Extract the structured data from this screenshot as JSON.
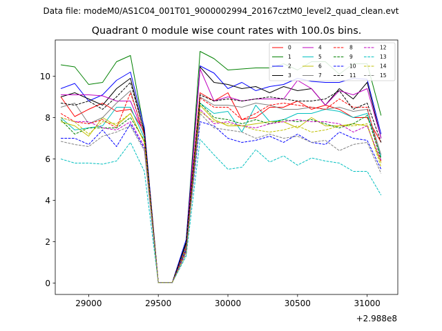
{
  "chart_data": {
    "type": "line",
    "suptitle": "Data file: modeM0/AS1C04_001T01_9000002994_20167cztM0_level2_quad_clean.evt",
    "title": "Quadrant 0 module wise count rates with 100.0s bins.",
    "xlabel": "",
    "ylabel": "",
    "x_offset_label": "+2.988e8",
    "xlim": [
      28760,
      31220
    ],
    "ylim": [
      -0.55,
      11.75
    ],
    "xticks": [
      29000,
      29500,
      30000,
      30500,
      31000
    ],
    "yticks": [
      0,
      2,
      4,
      6,
      8,
      10
    ],
    "x": [
      28800,
      28900,
      29000,
      29100,
      29200,
      29300,
      29400,
      29500,
      29600,
      29700,
      29800,
      29900,
      30000,
      30100,
      30200,
      30300,
      30400,
      30500,
      30600,
      30700,
      30800,
      30900,
      31000,
      31100
    ],
    "series": [
      {
        "name": "0",
        "color": "#ff0000",
        "dash": "solid",
        "values": [
          9.0,
          8.05,
          8.4,
          8.7,
          8.3,
          8.4,
          7.3,
          0.02,
          0.02,
          1.9,
          9.2,
          8.8,
          9.2,
          7.9,
          8.0,
          8.5,
          8.5,
          8.8,
          8.4,
          8.6,
          8.4,
          8.0,
          8.0,
          6.8
        ]
      },
      {
        "name": "1",
        "color": "#008000",
        "dash": "solid",
        "values": [
          10.55,
          10.45,
          9.6,
          9.7,
          10.7,
          11.0,
          7.4,
          0.02,
          0.02,
          2.0,
          11.2,
          10.85,
          10.3,
          10.35,
          10.4,
          10.4,
          10.6,
          10.3,
          10.7,
          10.7,
          10.1,
          10.6,
          10.6,
          8.1
        ]
      },
      {
        "name": "2",
        "color": "#0000ff",
        "dash": "solid",
        "values": [
          9.4,
          9.65,
          8.8,
          9.1,
          9.8,
          10.2,
          7.5,
          0.02,
          0.02,
          2.1,
          10.5,
          10.15,
          9.4,
          9.7,
          9.3,
          9.5,
          9.6,
          9.9,
          9.75,
          9.7,
          9.7,
          9.9,
          9.85,
          7.2
        ]
      },
      {
        "name": "3",
        "color": "#000000",
        "dash": "solid",
        "values": [
          9.0,
          9.2,
          8.9,
          8.6,
          9.4,
          9.9,
          7.3,
          0.02,
          0.02,
          1.95,
          10.45,
          9.7,
          9.6,
          9.4,
          9.5,
          9.2,
          9.5,
          9.3,
          9.4,
          8.6,
          9.4,
          8.9,
          9.7,
          7.0
        ]
      },
      {
        "name": "4",
        "color": "#bf00bf",
        "dash": "solid",
        "values": [
          9.1,
          9.1,
          9.1,
          9.05,
          8.8,
          8.8,
          7.2,
          0.02,
          0.02,
          1.8,
          10.35,
          8.8,
          9.0,
          8.8,
          8.9,
          8.9,
          8.9,
          9.8,
          9.4,
          8.6,
          9.3,
          9.1,
          9.4,
          7.0
        ]
      },
      {
        "name": "5",
        "color": "#00bfbf",
        "dash": "solid",
        "values": [
          8.0,
          7.4,
          7.5,
          7.6,
          8.5,
          8.5,
          7.0,
          0.02,
          0.02,
          1.7,
          8.7,
          8.2,
          8.3,
          7.3,
          8.6,
          7.8,
          7.9,
          8.2,
          8.2,
          8.4,
          8.3,
          8.0,
          8.2,
          6.1
        ]
      },
      {
        "name": "6",
        "color": "#bfbf00",
        "dash": "solid",
        "values": [
          7.8,
          7.6,
          7.1,
          8.0,
          7.6,
          8.2,
          6.8,
          0.02,
          0.02,
          1.6,
          8.6,
          7.9,
          7.6,
          7.6,
          7.7,
          7.8,
          7.8,
          7.5,
          8.0,
          7.6,
          7.6,
          7.7,
          7.6,
          5.8
        ]
      },
      {
        "name": "7",
        "color": "#808080",
        "dash": "solid",
        "values": [
          8.5,
          8.7,
          7.7,
          8.0,
          8.7,
          9.3,
          7.1,
          0.02,
          0.02,
          1.8,
          9.0,
          8.6,
          8.6,
          8.5,
          8.7,
          8.6,
          8.4,
          8.4,
          8.5,
          8.4,
          8.5,
          8.3,
          8.4,
          6.2
        ]
      },
      {
        "name": "8",
        "color": "#ff0000",
        "dash": "dashed",
        "values": [
          8.2,
          7.8,
          7.7,
          7.9,
          7.5,
          9.2,
          7.2,
          0.02,
          0.02,
          1.7,
          8.95,
          8.5,
          8.5,
          7.9,
          8.2,
          8.6,
          8.7,
          8.6,
          8.5,
          8.4,
          8.9,
          8.5,
          8.5,
          5.9
        ]
      },
      {
        "name": "9",
        "color": "#008000",
        "dash": "dashed",
        "values": [
          7.9,
          7.2,
          7.5,
          7.5,
          7.5,
          8.0,
          6.9,
          0.02,
          0.02,
          1.6,
          8.7,
          8.0,
          7.9,
          7.7,
          7.9,
          7.7,
          7.9,
          7.8,
          7.9,
          7.7,
          7.5,
          7.7,
          8.1,
          6.0
        ]
      },
      {
        "name": "10",
        "color": "#0000ff",
        "dash": "dashed",
        "values": [
          7.0,
          7.0,
          6.7,
          7.4,
          6.6,
          7.7,
          6.5,
          0.02,
          0.02,
          1.6,
          7.8,
          7.6,
          7.0,
          6.8,
          6.9,
          7.1,
          6.8,
          7.2,
          6.8,
          6.7,
          7.3,
          7.0,
          6.9,
          5.5
        ]
      },
      {
        "name": "11",
        "color": "#000000",
        "dash": "dashed",
        "values": [
          8.7,
          8.6,
          8.8,
          8.4,
          9.0,
          9.7,
          7.3,
          0.02,
          0.02,
          1.9,
          9.1,
          8.8,
          8.9,
          8.8,
          8.9,
          9.0,
          8.9,
          8.8,
          8.8,
          8.9,
          9.3,
          8.4,
          8.7,
          6.8
        ]
      },
      {
        "name": "12",
        "color": "#bf00bf",
        "dash": "dashed",
        "values": [
          8.0,
          7.8,
          7.8,
          7.5,
          7.4,
          7.8,
          6.6,
          0.02,
          0.02,
          1.5,
          8.4,
          7.7,
          7.8,
          7.6,
          7.5,
          7.7,
          7.8,
          7.9,
          7.8,
          7.8,
          7.7,
          7.3,
          7.6,
          5.9
        ]
      },
      {
        "name": "13",
        "color": "#00bfbf",
        "dash": "dashed",
        "values": [
          6.0,
          5.8,
          5.8,
          5.75,
          5.9,
          6.8,
          5.4,
          0.02,
          0.02,
          1.3,
          6.95,
          6.2,
          5.5,
          5.6,
          6.45,
          5.85,
          6.15,
          5.7,
          6.05,
          5.9,
          5.8,
          5.4,
          5.4,
          4.25
        ]
      },
      {
        "name": "14",
        "color": "#bfbf00",
        "dash": "dashed",
        "values": [
          8.0,
          7.8,
          7.2,
          7.8,
          7.7,
          8.2,
          6.8,
          0.02,
          0.02,
          1.5,
          8.3,
          7.8,
          7.7,
          7.6,
          7.4,
          7.3,
          7.4,
          7.6,
          7.3,
          7.4,
          7.6,
          7.6,
          7.7,
          5.6
        ]
      },
      {
        "name": "15",
        "color": "#808080",
        "dash": "dashed",
        "values": [
          6.85,
          6.7,
          6.6,
          7.1,
          7.3,
          7.6,
          6.4,
          0.02,
          0.02,
          1.4,
          8.2,
          7.5,
          7.4,
          7.3,
          7.0,
          7.2,
          7.0,
          7.1,
          6.8,
          6.9,
          6.4,
          6.7,
          6.8,
          5.3
        ]
      }
    ],
    "legend": {
      "location": "top-right",
      "columns": 4
    }
  }
}
